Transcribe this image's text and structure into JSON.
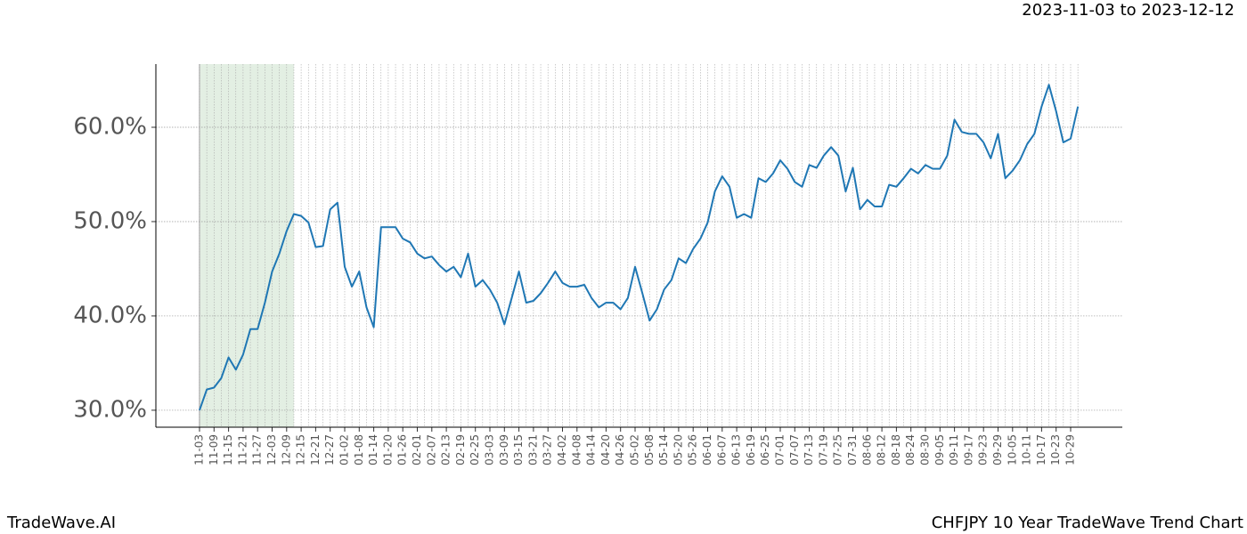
{
  "chart_data": {
    "type": "line",
    "subtitle": "2023-11-03 to 2023-12-12",
    "footer_left": "TradeWave.AI",
    "footer_right": "CHFJPY 10 Year TradeWave Trend Chart",
    "categories": [
      "11-03",
      null,
      "11-09",
      null,
      "11-15",
      null,
      "11-21",
      null,
      "11-27",
      null,
      "12-03",
      null,
      "12-09",
      null,
      "12-15",
      null,
      "12-21",
      null,
      "12-27",
      null,
      "01-02",
      null,
      "01-08",
      null,
      "01-14",
      null,
      "01-20",
      null,
      "01-26",
      null,
      "02-01",
      null,
      "02-07",
      null,
      "02-13",
      null,
      "02-19",
      null,
      "02-25",
      null,
      "03-03",
      null,
      "03-09",
      null,
      "03-15",
      null,
      "03-21",
      null,
      "03-27",
      null,
      "04-02",
      null,
      "04-08",
      null,
      "04-14",
      null,
      "04-20",
      null,
      "04-26",
      null,
      "05-02",
      null,
      "05-08",
      null,
      "05-14",
      null,
      "05-20",
      null,
      "05-26",
      null,
      "06-01",
      null,
      "06-07",
      null,
      "06-13",
      null,
      "06-19",
      null,
      "06-25",
      null,
      "07-01",
      null,
      "07-07",
      null,
      "07-13",
      null,
      "07-19",
      null,
      "07-25",
      null,
      "07-31",
      null,
      "08-06",
      null,
      "08-12",
      null,
      "08-18",
      null,
      "08-24",
      null,
      "08-30",
      null,
      "09-05",
      null,
      "09-11",
      null,
      "09-17",
      null,
      "09-23",
      null,
      "09-29",
      null,
      "10-05",
      null,
      "10-11",
      null,
      "10-17",
      null,
      "10-23",
      null,
      "10-29",
      null
    ],
    "series": [
      {
        "name": "CHFJPY",
        "color": "#1f77b4",
        "values": [
          30.0,
          32.2,
          32.4,
          33.4,
          35.6,
          34.3,
          35.9,
          38.6,
          38.6,
          41.4,
          44.7,
          46.6,
          49.0,
          50.8,
          50.6,
          49.9,
          47.3,
          47.4,
          51.3,
          52.0,
          45.2,
          43.1,
          44.7,
          40.9,
          38.8,
          49.4,
          49.4,
          49.4,
          48.2,
          47.8,
          46.6,
          46.1,
          46.3,
          45.4,
          44.7,
          45.2,
          44.1,
          46.6,
          43.1,
          43.8,
          42.8,
          41.4,
          39.1,
          41.9,
          44.7,
          41.4,
          41.6,
          42.4,
          43.5,
          44.7,
          43.5,
          43.1,
          43.1,
          43.3,
          41.9,
          40.9,
          41.4,
          41.4,
          40.7,
          41.9,
          45.2,
          42.4,
          39.5,
          40.7,
          42.8,
          43.8,
          46.1,
          45.6,
          47.1,
          48.2,
          49.9,
          53.2,
          54.8,
          53.7,
          50.4,
          50.8,
          50.4,
          54.6,
          54.2,
          55.1,
          56.5,
          55.6,
          54.2,
          53.7,
          56.0,
          55.7,
          57.0,
          57.9,
          57.0,
          53.2,
          55.7,
          51.3,
          52.3,
          51.6,
          51.6,
          53.9,
          53.7,
          54.6,
          55.6,
          55.1,
          56.0,
          55.6,
          55.6,
          57.0,
          60.8,
          59.5,
          59.3,
          59.3,
          58.4,
          56.7,
          59.3,
          54.6,
          55.4,
          56.5,
          58.2,
          59.3,
          62.2,
          64.5,
          61.7,
          58.4,
          58.8,
          62.2
        ]
      }
    ],
    "highlight": {
      "from": 0,
      "to": 13,
      "color": "#e3efe3"
    },
    "ylim": [
      28.2,
      66.7
    ],
    "yticks": [
      {
        "value": 30,
        "label": "30.0%"
      },
      {
        "value": 40,
        "label": "40.0%"
      },
      {
        "value": 50,
        "label": "50.0%"
      },
      {
        "value": 60,
        "label": "60.0%"
      }
    ],
    "grid": true
  }
}
